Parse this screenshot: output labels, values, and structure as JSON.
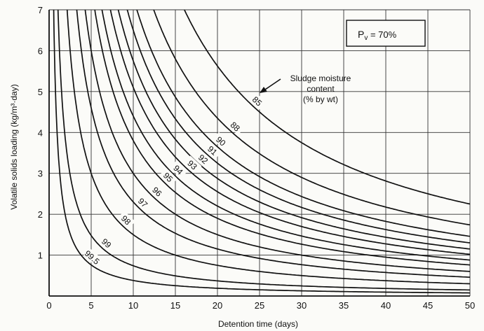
{
  "chart_data": {
    "type": "line",
    "xlabel": "Detention time  (days)",
    "ylabel": "Volatile solids loading (kg/m³·day)",
    "xlim": [
      0,
      50
    ],
    "ylim": [
      0,
      7
    ],
    "x_ticks": [
      "0",
      "5",
      "10",
      "15",
      "20",
      "25",
      "30",
      "35",
      "40",
      "45",
      "50"
    ],
    "y_ticks": [
      "1",
      "2",
      "3",
      "4",
      "5",
      "6",
      "7"
    ],
    "grid": true,
    "legend_box": {
      "label": "P",
      "subscript": "v",
      "rest": " = 70%"
    },
    "annotation": {
      "lines": [
        "Sludge moisture",
        "content",
        "(% by wt)"
      ]
    },
    "series": [
      {
        "name": "85",
        "k": 112.5
      },
      {
        "name": "88",
        "k": 87.0
      },
      {
        "name": "90",
        "k": 73.0
      },
      {
        "name": "91",
        "k": 65.0
      },
      {
        "name": "92",
        "k": 57.5
      },
      {
        "name": "93",
        "k": 51.0
      },
      {
        "name": "94",
        "k": 44.0
      },
      {
        "name": "95",
        "k": 38.0
      },
      {
        "name": "96",
        "k": 30.0
      },
      {
        "name": "97",
        "k": 23.0
      },
      {
        "name": "98",
        "k": 15.0
      },
      {
        "name": "99",
        "k": 7.4
      },
      {
        "name": "99.5",
        "k": 3.8
      }
    ],
    "curve_label_x": [
      24.2,
      21.6,
      19.9,
      18.9,
      17.8,
      16.5,
      14.8,
      13.6,
      12.3,
      10.6,
      8.6,
      6.3,
      4.6
    ]
  }
}
